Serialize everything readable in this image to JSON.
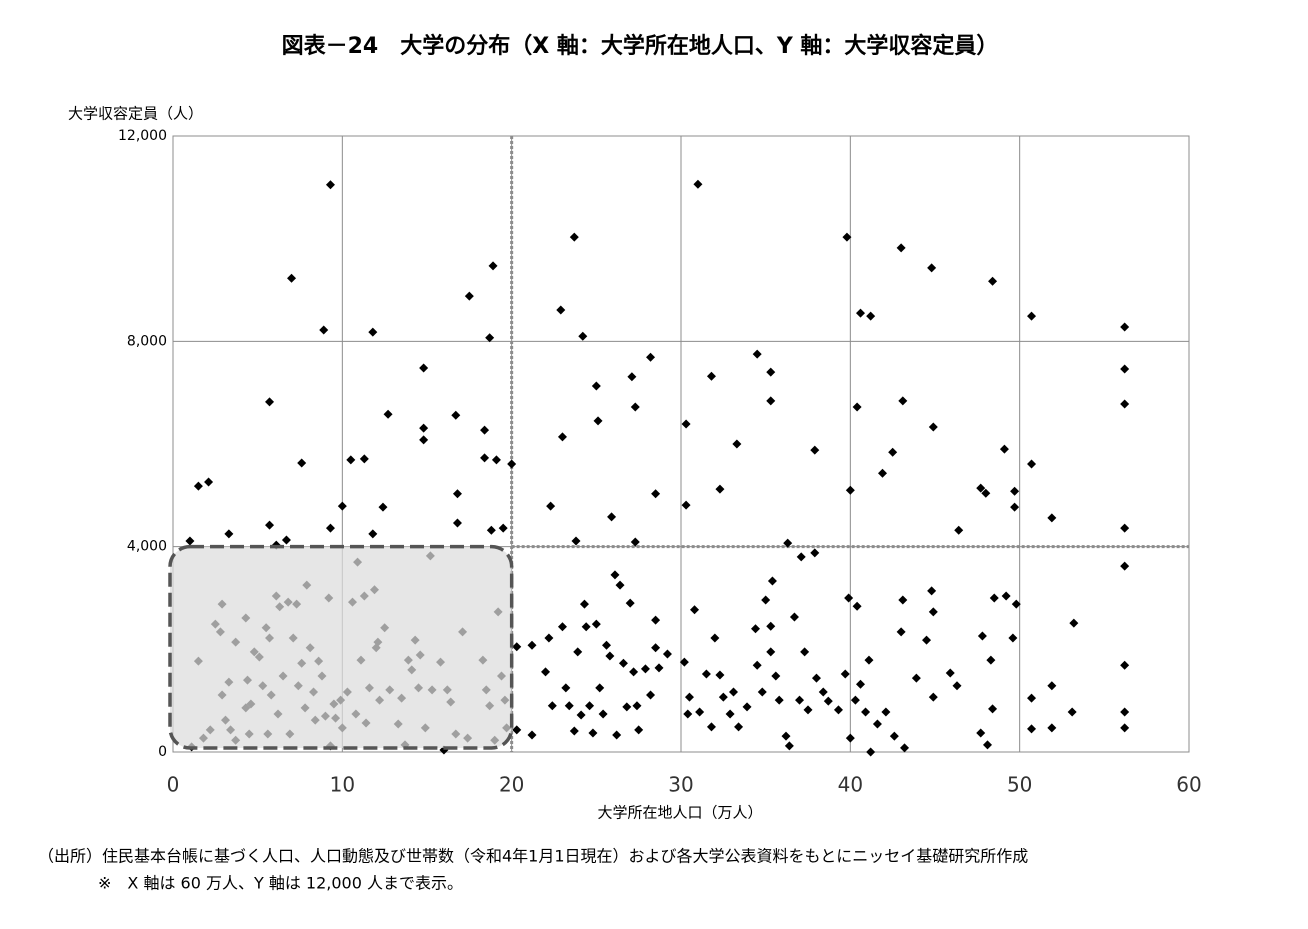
{
  "chart_data": {
    "type": "scatter",
    "title": "図表－24　大学の分布（X 軸：大学所在地人口、Y 軸：大学収容定員）",
    "y_label": "大学収容定員（人）",
    "x_label": "大学所在地人口（万人）",
    "source": "（出所）住民基本台帳に基づく人口、人口動態及び世帯数（令和4年1月1日現在）および各大学公表資料をもとにニッセイ基礎研究所作成",
    "note": "※　X 軸は 60 万人、Y 軸は 12,000 人まで表示。",
    "color": "#000000",
    "grid": true,
    "xlim": [
      0,
      60
    ],
    "ylim": [
      0,
      12000
    ],
    "xticks": [
      0,
      10,
      20,
      30,
      40,
      50,
      60
    ],
    "yticks": [
      0,
      {
        "value": 4000,
        "label": "4,000"
      },
      {
        "value": 8000,
        "label": "8,000"
      },
      {
        "value": 12000,
        "label": "12,000"
      }
    ],
    "reference_lines": {
      "x": 20,
      "y": 4000
    },
    "x": [
      1.0,
      1.5,
      2.1,
      3.3,
      5.7,
      5.7,
      6.1,
      6.7,
      7.0,
      7.6,
      8.9,
      9.3,
      9.3,
      10.0,
      10.5,
      11.3,
      11.8,
      11.8,
      12.4,
      12.7,
      14.8,
      14.8,
      14.8,
      16.7,
      16.8,
      16.8,
      17.5,
      18.4,
      18.4,
      18.7,
      18.8,
      18.9,
      19.1,
      19.5,
      20.0,
      22.3,
      22.9,
      23.0,
      23.7,
      23.8,
      24.2,
      25.0,
      25.1,
      25.9,
      27.1,
      27.3,
      27.3,
      28.2,
      28.5,
      30.3,
      30.3,
      31.0,
      31.8,
      32.3,
      33.3,
      34.5,
      35.3,
      35.3,
      36.3,
      37.9,
      39.8,
      40.0,
      40.4,
      40.6,
      41.2,
      41.9,
      42.5,
      43.0,
      43.1,
      44.8,
      44.9,
      46.4,
      47.7,
      48.0,
      48.4,
      49.1,
      49.7,
      49.7,
      50.7,
      50.7,
      51.9,
      56.2,
      56.2,
      56.2,
      56.2,
      1.1,
      1.5,
      1.8,
      2.2,
      2.5,
      2.8,
      2.9,
      2.9,
      3.1,
      3.3,
      3.4,
      3.7,
      3.7,
      4.3,
      4.3,
      4.4,
      4.5,
      4.6,
      4.8,
      5.1,
      5.3,
      5.5,
      5.6,
      5.7,
      5.8,
      6.1,
      6.2,
      6.3,
      6.5,
      6.8,
      6.9,
      7.1,
      7.3,
      7.4,
      7.6,
      7.8,
      7.9,
      8.1,
      8.3,
      8.4,
      8.6,
      8.8,
      9.0,
      9.2,
      9.3,
      9.5,
      9.6,
      9.9,
      10.0,
      10.3,
      10.6,
      10.8,
      10.9,
      11.1,
      11.3,
      11.4,
      11.6,
      11.9,
      12.0,
      12.1,
      12.2,
      12.5,
      12.8,
      13.3,
      13.5,
      13.7,
      13.9,
      14.1,
      14.3,
      14.5,
      14.6,
      14.9,
      15.2,
      15.3,
      15.8,
      16.0,
      16.2,
      16.4,
      16.7,
      17.1,
      17.4,
      18.3,
      18.5,
      18.7,
      19.0,
      19.2,
      19.4,
      19.6,
      19.7,
      20.3,
      20.3,
      21.2,
      21.2,
      22.0,
      22.2,
      22.4,
      23.0,
      23.2,
      23.4,
      23.7,
      23.9,
      24.1,
      24.3,
      24.4,
      24.6,
      24.8,
      25.0,
      25.2,
      25.4,
      25.6,
      25.8,
      26.1,
      26.2,
      26.4,
      26.6,
      26.8,
      27.0,
      27.2,
      27.4,
      27.5,
      27.9,
      28.2,
      28.5,
      28.5,
      28.7,
      29.2,
      30.2,
      30.4,
      30.5,
      30.8,
      31.1,
      31.5,
      31.8,
      32.0,
      32.3,
      32.5,
      32.9,
      33.1,
      33.4,
      33.9,
      34.4,
      34.5,
      34.8,
      35.0,
      35.3,
      35.3,
      35.4,
      35.6,
      35.8,
      36.2,
      36.4,
      36.7,
      37.0,
      37.1,
      37.3,
      37.5,
      37.9,
      38.0,
      38.4,
      38.7,
      39.3,
      39.7,
      39.9,
      40.0,
      40.3,
      40.4,
      40.6,
      40.9,
      41.1,
      41.2,
      41.6,
      42.1,
      42.6,
      43.0,
      43.1,
      43.2,
      43.9,
      44.5,
      44.8,
      44.9,
      44.9,
      45.9,
      46.3,
      47.7,
      47.8,
      48.1,
      48.3,
      48.4,
      48.5,
      49.2,
      49.6,
      49.8,
      50.7,
      50.7,
      51.9,
      51.9,
      53.1,
      53.2,
      56.2,
      56.2,
      56.2,
      56.2
    ],
    "values": [
      4110,
      5180,
      5260,
      4250,
      6820,
      4420,
      4030,
      4130,
      9230,
      5630,
      8220,
      4360,
      11050,
      4790,
      5690,
      5710,
      8180,
      4250,
      4770,
      6580,
      6080,
      6310,
      7480,
      6560,
      5030,
      4460,
      8880,
      6270,
      5730,
      8070,
      4320,
      9470,
      5690,
      4360,
      5610,
      4790,
      8610,
      6140,
      10030,
      4110,
      8100,
      7130,
      6450,
      4580,
      7310,
      6720,
      4090,
      7690,
      5030,
      6390,
      4810,
      11060,
      7320,
      5120,
      6000,
      7750,
      7400,
      6840,
      4070,
      5880,
      10030,
      5100,
      6720,
      8550,
      8490,
      5430,
      5840,
      9820,
      6840,
      9430,
      6330,
      4320,
      5140,
      5040,
      9170,
      5900,
      5080,
      4770,
      8490,
      5610,
      4560,
      8280,
      7460,
      6780,
      4360,
      100,
      1770,
      270,
      430,
      2490,
      2340,
      1110,
      2880,
      620,
      1360,
      430,
      2140,
      230,
      2610,
      860,
      1400,
      350,
      935,
      1950,
      1850,
      1290,
      2420,
      350,
      2220,
      1110,
      3040,
      740,
      2830,
      1480,
      2920,
      350,
      2220,
      2880,
      1290,
      1730,
      860,
      3250,
      2030,
      1170,
      620,
      1770,
      1480,
      700,
      3000,
      120,
      935,
      660,
      1010,
      470,
      1170,
      2920,
      740,
      3700,
      1790,
      3040,
      565,
      1250,
      3160,
      2030,
      2140,
      1010,
      2420,
      1210,
      545,
      1050,
      140,
      1790,
      1600,
      2180,
      1250,
      1890,
      470,
      3820,
      1210,
      1750,
      40,
      1210,
      975,
      350,
      2340,
      270,
      1790,
      1210,
      900,
      230,
      2730,
      1480,
      1010,
      470,
      2050,
      430,
      330,
      2080,
      1560,
      2220,
      900,
      2440,
      1250,
      900,
      410,
      1950,
      720,
      2880,
      2440,
      900,
      370,
      2490,
      1250,
      740,
      2080,
      1870,
      3450,
      330,
      3250,
      1730,
      880,
      2900,
      1560,
      900,
      430,
      1620,
      1110,
      2030,
      2570,
      1640,
      1910,
      1750,
      740,
      1070,
      2770,
      780,
      1520,
      490,
      2220,
      1500,
      1070,
      740,
      1170,
      490,
      880,
      2400,
      1690,
      1170,
      2960,
      2450,
      1950,
      3330,
      1480,
      1010,
      310,
      120,
      2630,
      1010,
      3800,
      1950,
      820,
      3880,
      1440,
      1170,
      990,
      820,
      1520,
      3000,
      270,
      1010,
      2840,
      1320,
      780,
      1790,
      0,
      545,
      780,
      310,
      2340,
      2960,
      80,
      1440,
      2180,
      3140,
      1070,
      2730,
      1540,
      1290,
      370,
      2260,
      140,
      1790,
      840,
      3000,
      3040,
      2220,
      2880,
      1050,
      450,
      1290,
      470,
      780,
      2510,
      3620,
      1690,
      780,
      470
    ]
  }
}
